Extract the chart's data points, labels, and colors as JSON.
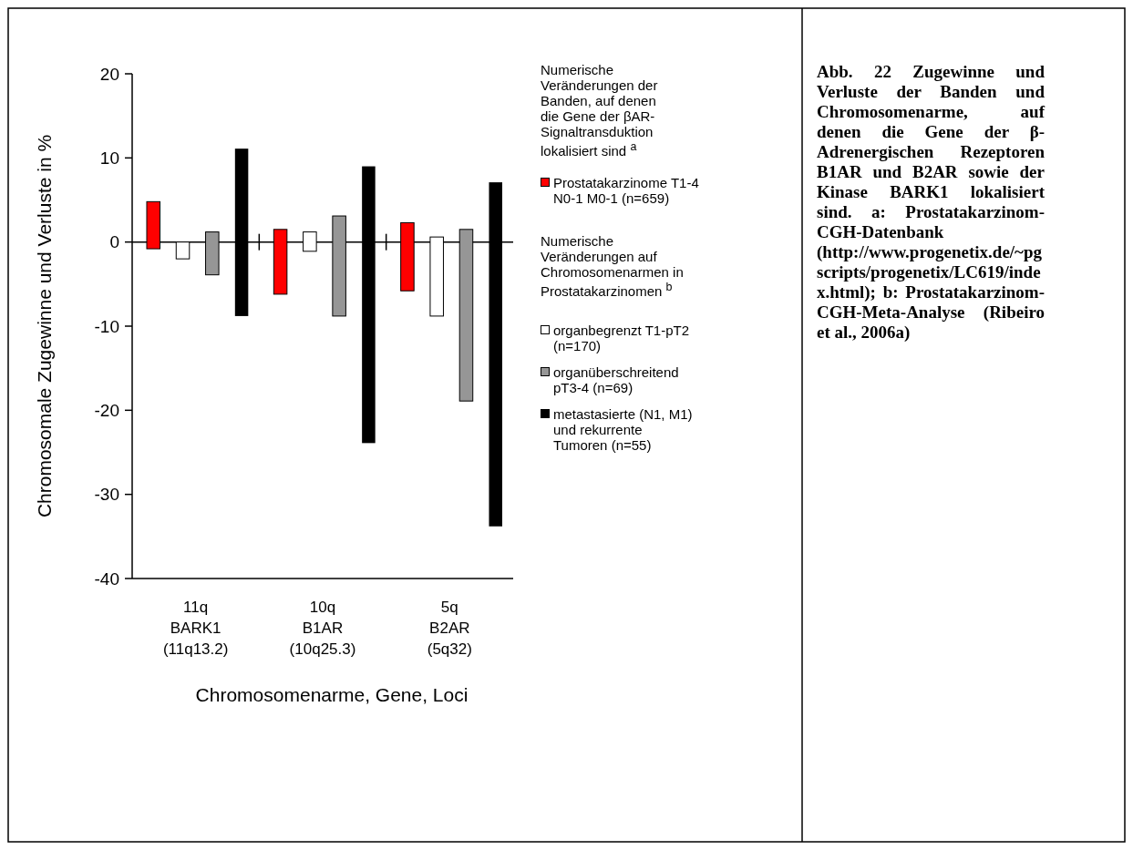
{
  "chart_data": {
    "type": "bar",
    "title": "Abb. 22 Zugewinne und Verluste der Banden und Chromosomenarme, auf denen die Gene der β-Adrenergischen Rezeptoren B1AR und B2AR sowie der Kinase BARK1 lokalisiert sind. a: Prostatakarzinom-CGH-Datenbank (http://www.progenetix.de/~pgscripts/progenetix/LC619/index.html); b: Prostatakarzinom-CGH-Meta-Analyse (Ribeiro et al., 2006a)",
    "xlabel": "Chromosomenarme, Gene, Loci",
    "ylabel": "Chromosomale Zugewinne und Verluste in %",
    "annotations": [
      "Numerische Veränderungen der Banden, auf denen die Gene der βAR-Signaltransduktion lokalisiert sind $^{a}$",
      "Numerische Veränderungen auf Chromosomenarmen in Prostatakarzinomen $^{b}$"
    ],
    "categories": [
      "11q\nBARK1\n(11q13.2)",
      "10q\nB1AR\n(10q25.3)",
      "5q\nB2AR\n(5q32)"
    ],
    "series": [
      {
        "name": "Prostatakarzinome T1-4 N0-1 M0-1 (n=659)",
        "color": "#ff0000",
        "base": [
          -0.8,
          -6.2,
          -5.8
        ],
        "values": [
          5.6,
          7.7,
          8.1
        ]
      },
      {
        "name": "organbegrenzt T1-pT2 (n=170)",
        "color": "#ffffff",
        "base": [
          -2.0,
          -1.1,
          -8.8
        ],
        "values": [
          2.0,
          2.3,
          9.4
        ]
      },
      {
        "name": "organüberschreitend pT3-4 (n=69)",
        "color": "#969696",
        "base": [
          -3.9,
          -8.8,
          -18.9
        ],
        "values": [
          5.1,
          11.9,
          20.4
        ]
      },
      {
        "name": "metastasierte (N1, M1) und rekurrente Tumoren (n=55)",
        "color": "#000000",
        "base": [
          -8.8,
          -23.9,
          -33.8
        ],
        "values": [
          19.9,
          32.9,
          40.9
        ]
      }
    ],
    "ylim": [
      -40,
      20
    ],
    "yticks": [
      -40,
      -30,
      -20,
      -10,
      0,
      10,
      20
    ],
    "legend": "right"
  }
}
